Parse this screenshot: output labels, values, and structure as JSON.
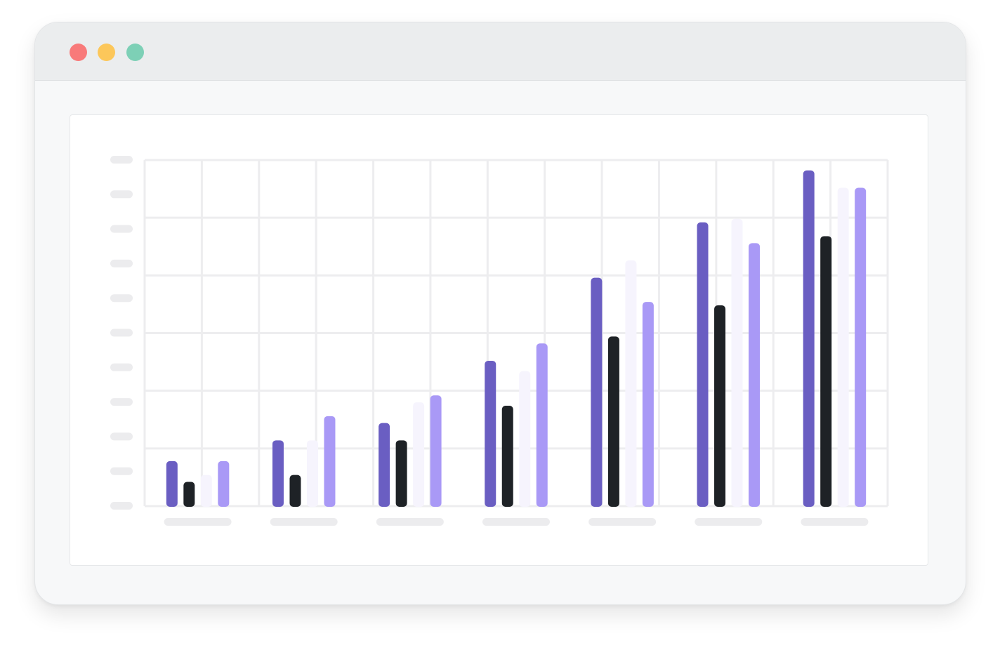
{
  "window": {
    "controls": [
      {
        "name": "close-dot",
        "color": "#f87a7a"
      },
      {
        "name": "minimize-dot",
        "color": "#fcc75a"
      },
      {
        "name": "maximize-dot",
        "color": "#7dd0b6"
      }
    ]
  },
  "chart_data": {
    "type": "bar",
    "title": "",
    "xlabel": "",
    "ylabel": "",
    "ylim": [
      0,
      100
    ],
    "grid": true,
    "legend": "none",
    "categories": [
      "",
      "",
      "",
      "",
      "",
      "",
      ""
    ],
    "series": [
      {
        "color": "#6a5ec2",
        "values": [
          13,
          19,
          24,
          42,
          66,
          82,
          97
        ]
      },
      {
        "color": "#1e2226",
        "values": [
          7,
          9,
          19,
          29,
          49,
          58,
          78
        ]
      },
      {
        "color": "#f6f4fd",
        "values": [
          9,
          19,
          30,
          39,
          71,
          83,
          92
        ]
      },
      {
        "color": "#a999f6",
        "values": [
          13,
          26,
          32,
          47,
          59,
          76,
          92
        ]
      }
    ],
    "y_tick_count": 11
  }
}
